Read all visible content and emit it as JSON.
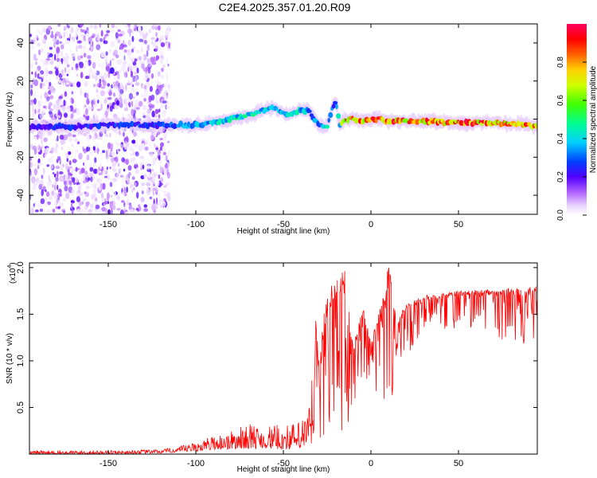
{
  "title": "C2E4.2025.357.01.20.R09",
  "chart_data": [
    {
      "type": "heatmap",
      "name": "spectrogram",
      "xlabel": "Height of straight line (km)",
      "ylabel": "Frequency (Hz)",
      "xlim": [
        -195,
        95
      ],
      "ylim": [
        -50,
        50
      ],
      "xticks": [
        -150,
        -100,
        -50,
        0,
        50
      ],
      "yticks": [
        -40,
        -20,
        0,
        20,
        40
      ],
      "colorbar": {
        "label": "Normalized spectral amplitude",
        "range": [
          0,
          1
        ],
        "ticks": [
          0.0,
          0.2,
          0.4,
          0.6,
          0.8
        ]
      },
      "ridge": {
        "x": [
          -195,
          -170,
          -150,
          -130,
          -110,
          -100,
          -90,
          -80,
          -70,
          -60,
          -55,
          -50,
          -45,
          -40,
          -35,
          -30,
          -25,
          -22,
          -20,
          -18,
          -15,
          -10,
          -5,
          0,
          5,
          10,
          20,
          30,
          50,
          70,
          90,
          95
        ],
        "freq": [
          -4,
          -4,
          -3,
          -3,
          -3,
          -3,
          -2,
          0,
          2,
          5,
          6,
          3,
          3,
          5,
          4,
          -3,
          -4,
          6,
          10,
          -3,
          0,
          0,
          -1,
          0,
          0,
          -1,
          -1,
          -1,
          -2,
          -2,
          -3,
          -4
        ],
        "amp": [
          0.25,
          0.3,
          0.3,
          0.3,
          0.35,
          0.4,
          0.45,
          0.5,
          0.5,
          0.45,
          0.45,
          0.5,
          0.5,
          0.45,
          0.4,
          0.4,
          0.45,
          0.35,
          0.3,
          0.5,
          0.95,
          0.9,
          0.95,
          0.95,
          0.95,
          0.95,
          0.95,
          0.95,
          0.95,
          0.95,
          0.9,
          0.95
        ]
      },
      "noise_region_x": [
        -195,
        -115
      ]
    },
    {
      "type": "line",
      "name": "snr",
      "series": [
        {
          "name": "SNR",
          "color": "#ff0000"
        }
      ],
      "xlabel": "Height of straight line (km)",
      "ylabel": "SNR (10 * v/v)",
      "scale_label": "(x10",
      "scale_exp": "4",
      "scale_close": ")",
      "xlim": [
        -195,
        95
      ],
      "ylim": [
        0,
        2.05
      ],
      "xticks": [
        -150,
        -100,
        -50,
        0,
        50
      ],
      "yticks": [
        0.5,
        1.0,
        1.5,
        2.0
      ],
      "envelope": {
        "x": [
          -195,
          -150,
          -120,
          -110,
          -100,
          -90,
          -80,
          -70,
          -60,
          -50,
          -40,
          -35,
          -32,
          -30,
          -25,
          -20,
          -15,
          -10,
          -5,
          0,
          5,
          10,
          15,
          20,
          25,
          30,
          40,
          50,
          60,
          70,
          80,
          90,
          95
        ],
        "max": [
          0.04,
          0.04,
          0.05,
          0.08,
          0.13,
          0.2,
          0.25,
          0.33,
          0.3,
          0.32,
          0.35,
          0.55,
          1.65,
          1.05,
          1.75,
          1.9,
          2.0,
          1.15,
          1.65,
          1.2,
          1.55,
          2.05,
          1.45,
          1.6,
          1.65,
          1.7,
          1.72,
          1.75,
          1.76,
          1.77,
          1.78,
          1.8,
          1.8
        ],
        "min": [
          0.0,
          0.0,
          0.01,
          0.02,
          0.03,
          0.05,
          0.05,
          0.06,
          0.06,
          0.05,
          0.05,
          0.1,
          0.05,
          0.1,
          0.05,
          0.5,
          0.05,
          0.55,
          0.75,
          0.7,
          0.65,
          0.3,
          0.95,
          1.05,
          1.15,
          1.3,
          1.35,
          1.3,
          1.35,
          1.2,
          1.25,
          1.1,
          1.2
        ]
      }
    }
  ]
}
